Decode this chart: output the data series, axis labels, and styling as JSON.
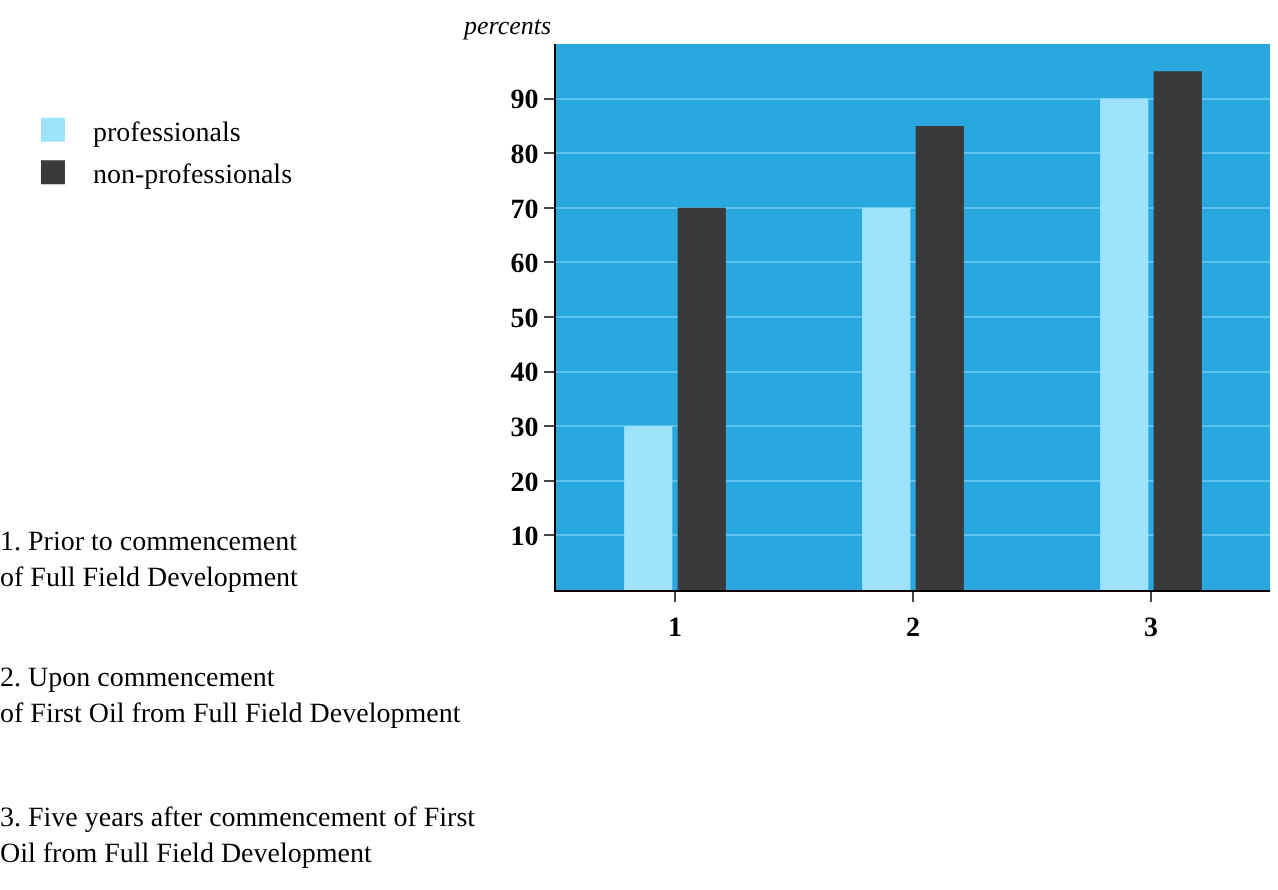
{
  "chart_data": {
    "type": "bar",
    "ylabel": "percents",
    "categories": [
      "1",
      "2",
      "3"
    ],
    "series": [
      {
        "name": "professionals",
        "color": "#9ee3fb",
        "values": [
          30,
          70,
          90
        ]
      },
      {
        "name": "non-professionals",
        "color": "#3a3a3a",
        "values": [
          70,
          85,
          95
        ]
      }
    ],
    "ylim": [
      0,
      100
    ],
    "yticks": [
      10,
      20,
      30,
      40,
      50,
      60,
      70,
      80,
      90
    ],
    "grid": "y",
    "legend": "top left",
    "annotations": [
      "1. Prior to commencement\nof Full Field Development",
      "2. Upon commencement\nof First Oil from Full Field Development",
      "3. Five years after commencement of First\nOil from Full Field Development"
    ]
  }
}
